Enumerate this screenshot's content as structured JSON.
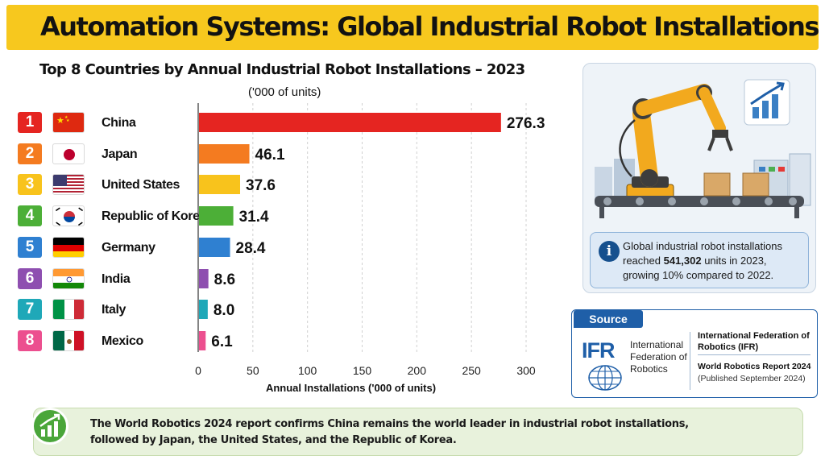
{
  "page_title": "Automation Systems: Global Industrial Robot Installations",
  "chart_data": {
    "type": "bar",
    "orientation": "horizontal",
    "title": "Top 8 Countries by Annual Industrial Robot Installations – 2023",
    "subtitle": "('000 of units)",
    "xlabel": "Annual Installations ('000 of units)",
    "xlim": [
      0,
      300
    ],
    "xticks": [
      "0",
      "50",
      "100",
      "150",
      "200",
      "250",
      "300"
    ],
    "grid": true,
    "categories": [
      "China",
      "Japan",
      "United States",
      "Republic of Korea",
      "Germany",
      "India",
      "Italy",
      "Mexico"
    ],
    "ranks": [
      "1",
      "2",
      "3",
      "4",
      "5",
      "6",
      "7",
      "8"
    ],
    "values": [
      276.3,
      46.1,
      37.6,
      31.4,
      28.4,
      8.6,
      8.0,
      6.1
    ],
    "value_labels": [
      "276.3",
      "46.1",
      "37.6",
      "31.4",
      "28.4",
      "8.6",
      "8.0",
      "6.1"
    ],
    "colors": [
      "#e52521",
      "#f47b20",
      "#f8c31c",
      "#4caf37",
      "#2f80d1",
      "#8e4fb0",
      "#1fa8b8",
      "#ec4f8f"
    ],
    "flags": [
      "china-flag",
      "japan-flag",
      "united-states-flag",
      "republic-of-korea-flag",
      "germany-flag",
      "india-flag",
      "italy-flag",
      "mexico-flag"
    ]
  },
  "info": {
    "icon": "info-icon",
    "line1": "Global industrial robot installations",
    "line2_prefix": "reached ",
    "line2_value": "541,302",
    "line2_suffix": " units in 2023,",
    "line3": "growing 10% compared to 2022."
  },
  "source": {
    "tab_label": "Source",
    "logo_letters": "IFR",
    "logo_name": "International Federation of Robotics",
    "org": "International Federation of Robotics (IFR)",
    "report": "World Robotics Report 2024",
    "published": "(Published September 2024)"
  },
  "footer": {
    "icon": "growth-chart-icon",
    "line1": "The World Robotics 2024 report confirms China remains the world leader in industrial robot installations,",
    "line2": "followed by Japan, the United States, and the Republic of Korea."
  },
  "illustration": {
    "icons": [
      "robot-arm-icon",
      "conveyor-belt-icon",
      "trend-chart-icon"
    ],
    "colors": {
      "robot": "#f2a91e",
      "panel": "#eef3f8",
      "accent": "#1f5fa8"
    }
  }
}
